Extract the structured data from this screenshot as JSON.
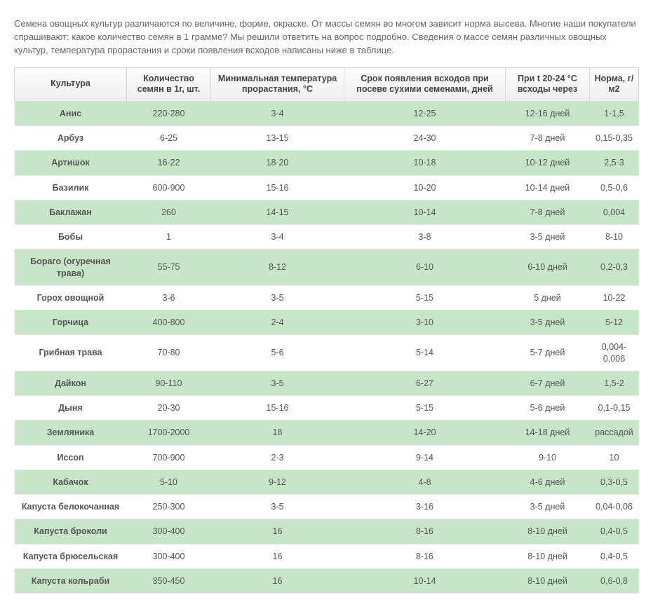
{
  "intro": "Семена овощных культур различаются по величине, форме, окраске. От массы семян во многом зависит норма высева. Многие наши покупатели спрашивают: какое количество семян в 1 грамме? Мы решили ответить на вопрос подробно. Сведения о массе семян различных овощных культур, температура прорастания и сроки появления всходов написаны ниже в таблице.",
  "table": {
    "type": "table",
    "header_bg_from": "#fdfdfd",
    "header_bg_to": "#efefef",
    "header_border": "#d7d7d7",
    "row_odd_bg": "#c7e6c9",
    "row_even_bg": "#ffffff",
    "row_border": "#e8e8e8",
    "text_color": "#555555",
    "font_size_pt": 10,
    "columns": [
      "Культура",
      "Количество семян в 1г, шт.",
      "Минимальная температура прорастания, °С",
      "Срок появления всходов при посеве сухими семенами, дней",
      "При t 20-24 °С всходы через",
      "Норма, г/м2"
    ],
    "rows": [
      [
        "Анис",
        "220-280",
        "3-4",
        "12-25",
        "12-16 дней",
        "1-1,5"
      ],
      [
        "Арбуз",
        "6-25",
        "13-15",
        "24-30",
        "7-8 дней",
        "0,15-0,35"
      ],
      [
        "Артишок",
        "16-22",
        "18-20",
        "10-18",
        "10-12 дней",
        "2,5-3"
      ],
      [
        "Базилик",
        "600-900",
        "15-16",
        "10-20",
        "10-14 дней",
        "0,5-0,6"
      ],
      [
        "Баклажан",
        "260",
        "14-15",
        "10-14",
        "7-8 дней",
        "0,004"
      ],
      [
        "Бобы",
        "1",
        "3-4",
        "3-8",
        "3-5 дней",
        "8-10"
      ],
      [
        "Бораго (огуречная трава)",
        "55-75",
        "8-12",
        "6-10",
        "6-10 дней",
        "0,2-0,3"
      ],
      [
        "Горох овощной",
        "3-6",
        "3-5",
        "5-15",
        "5 дней",
        "10-22"
      ],
      [
        "Горчица",
        "400-800",
        "2-4",
        "3-10",
        "3-5 дней",
        "5-12"
      ],
      [
        "Грибная трава",
        "70-80",
        "5-6",
        "5-14",
        "5-7 дней",
        "0,004-0,006"
      ],
      [
        "Дайкон",
        "90-110",
        "3-5",
        "6-27",
        "6-7 дней",
        "1,5-2"
      ],
      [
        "Дыня",
        "20-30",
        "15-16",
        "5-15",
        "5-6 дней",
        "0,1-0,15"
      ],
      [
        "Земляника",
        "1700-2000",
        "18",
        "14-20",
        "14-18 дней",
        "рассадой"
      ],
      [
        "Иссоп",
        "700-900",
        "2-3",
        "9-14",
        "9-10",
        "10"
      ],
      [
        "Кабачок",
        "5-10",
        "9-12",
        "4-8",
        "4-6 дней",
        "0,3-0,5"
      ],
      [
        "Капуста белокочанная",
        "250-300",
        "3-5",
        "3-16",
        "3-5 дней",
        "0,04-0,06"
      ],
      [
        "Капуста броколи",
        "300-400",
        "16",
        "8-16",
        "8-10 дней",
        "0,4-0,5"
      ],
      [
        "Капуста брюсельская",
        "300-400",
        "16",
        "8-16",
        "8-10 дней",
        "0,4-0,5"
      ],
      [
        "Капуста кольраби",
        "350-450",
        "16",
        "10-14",
        "8-10 дней",
        "0,6-0,8"
      ]
    ]
  }
}
